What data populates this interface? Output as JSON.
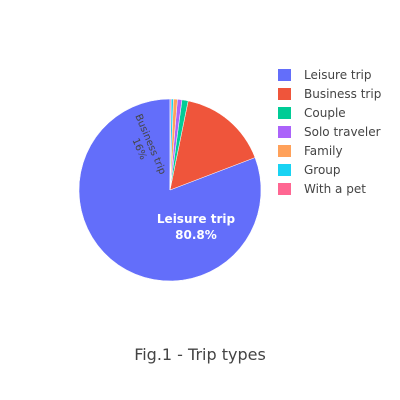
{
  "chart_data": {
    "type": "pie",
    "categories": [
      "Leisure trip",
      "Business trip",
      "Couple",
      "Solo traveler",
      "Family",
      "Group",
      "With a pet"
    ],
    "values": [
      80.8,
      16.0,
      1.1,
      0.8,
      0.7,
      0.4,
      0.2
    ],
    "colors": [
      "#636efa",
      "#ef553b",
      "#00cc96",
      "#ab63fa",
      "#ffa15a",
      "#19d3f3",
      "#ff6692"
    ],
    "labels": {
      "leisure_name": "Leisure trip",
      "leisure_pct": "80.8%",
      "business_name": "Business trip",
      "business_pct": "16%"
    },
    "legend_position": "top-right",
    "caption": "Fig.1 - Trip types"
  }
}
